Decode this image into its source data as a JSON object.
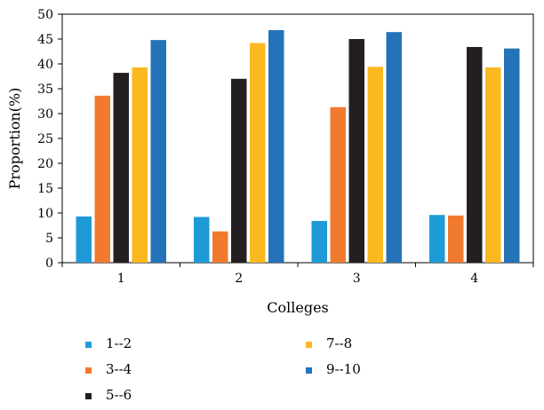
{
  "chart_data": {
    "type": "bar",
    "xlabel": "Colleges",
    "ylabel": "Proportion(%)",
    "categories": [
      "1",
      "2",
      "3",
      "4"
    ],
    "ylim": [
      0,
      50
    ],
    "yticks": [
      0,
      5,
      10,
      15,
      20,
      25,
      30,
      35,
      40,
      45,
      50
    ],
    "grid": false,
    "legend_position": "bottom",
    "series": [
      {
        "name": "1--2",
        "color": "#1f9ad6",
        "values": [
          9.3,
          9.2,
          8.4,
          9.6
        ]
      },
      {
        "name": "3--4",
        "color": "#f07b2e",
        "values": [
          33.6,
          6.3,
          31.3,
          9.5
        ]
      },
      {
        "name": "5--6",
        "color": "#231f20",
        "values": [
          38.2,
          37.0,
          45.0,
          43.4
        ]
      },
      {
        "name": "7--8",
        "color": "#fbb820",
        "values": [
          39.3,
          44.2,
          39.4,
          39.3
        ]
      },
      {
        "name": "9--10",
        "color": "#2473b8",
        "values": [
          44.8,
          46.8,
          46.4,
          43.1
        ]
      }
    ]
  }
}
